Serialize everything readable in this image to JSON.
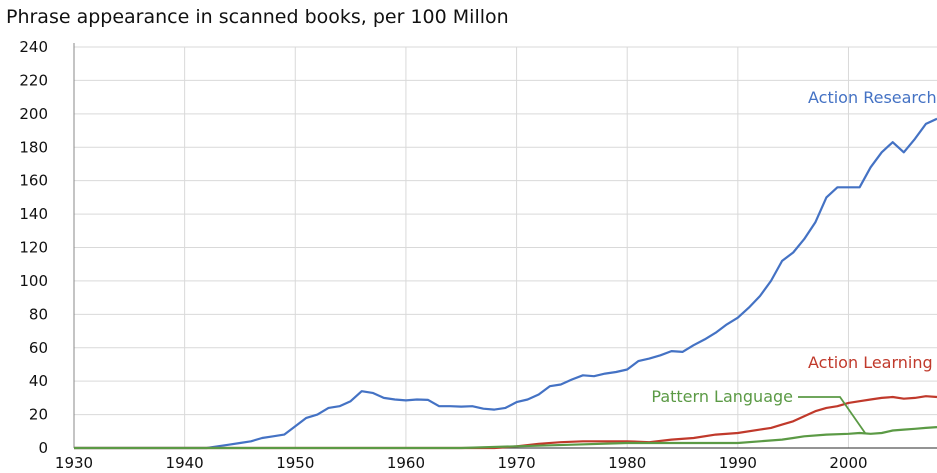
{
  "chart_data": {
    "type": "line",
    "title": "Phrase appearance in scanned books, per 100 Millon",
    "xlabel": "",
    "ylabel": "",
    "xlim": [
      1930,
      2008
    ],
    "ylim": [
      0,
      240
    ],
    "xticks": [
      1930,
      1940,
      1950,
      1960,
      1970,
      1980,
      1990,
      2000
    ],
    "yticks": [
      0,
      20,
      40,
      60,
      80,
      100,
      120,
      140,
      160,
      180,
      200,
      220,
      240
    ],
    "grid": true,
    "series": [
      {
        "name": "Action Research",
        "color": "#4472c4",
        "x": [
          1930,
          1942,
          1943,
          1944,
          1945,
          1946,
          1947,
          1948,
          1949,
          1950,
          1951,
          1952,
          1953,
          1954,
          1955,
          1956,
          1957,
          1958,
          1959,
          1960,
          1961,
          1962,
          1963,
          1964,
          1965,
          1966,
          1967,
          1968,
          1969,
          1970,
          1971,
          1972,
          1973,
          1974,
          1975,
          1976,
          1977,
          1978,
          1979,
          1980,
          1981,
          1982,
          1983,
          1984,
          1985,
          1986,
          1987,
          1988,
          1989,
          1990,
          1991,
          1992,
          1993,
          1994,
          1995,
          1996,
          1997,
          1998,
          1999,
          2000,
          2001,
          2002,
          2003,
          2004,
          2005,
          2006,
          2007,
          2008
        ],
        "y": [
          0,
          0,
          1,
          2,
          3,
          4,
          6,
          7,
          8,
          13,
          18,
          20,
          24,
          25,
          28,
          34,
          33,
          30,
          29,
          28.5,
          29,
          28.8,
          25,
          25,
          24.8,
          25,
          23.5,
          23,
          24,
          27.5,
          29,
          32,
          37,
          38,
          41,
          43.5,
          43,
          44.5,
          45.5,
          47,
          52,
          53.5,
          55.5,
          58,
          57.5,
          61.5,
          65,
          69,
          74,
          78,
          84,
          91,
          100,
          112,
          117,
          125,
          135,
          150,
          156,
          156,
          156,
          168,
          177,
          183,
          177,
          185,
          194,
          197
        ]
      },
      {
        "name": "Action Learning",
        "color": "#c0392b",
        "x": [
          1930,
          1968,
          1970,
          1972,
          1974,
          1976,
          1978,
          1980,
          1982,
          1984,
          1986,
          1988,
          1990,
          1992,
          1993,
          1994,
          1995,
          1996,
          1997,
          1998,
          1999,
          2000,
          2001,
          2002,
          2003,
          2004,
          2005,
          2006,
          2007,
          2008
        ],
        "y": [
          0,
          0,
          1,
          2.5,
          3.5,
          4,
          4,
          4,
          3.5,
          5,
          6,
          8,
          9,
          11,
          12,
          14,
          16,
          19,
          22,
          24,
          25,
          27,
          28,
          29,
          30,
          30.5,
          29.5,
          30,
          31,
          30.5
        ]
      },
      {
        "name": "Pattern Language",
        "color": "#5b9a45",
        "x": [
          1930,
          1965,
          1970,
          1975,
          1980,
          1985,
          1990,
          1992,
          1994,
          1995,
          1996,
          1998,
          2000,
          2001,
          2002,
          2003,
          2004,
          2005,
          2006,
          2007,
          2008
        ],
        "y": [
          0,
          0,
          1,
          2,
          3,
          3,
          3,
          4,
          5,
          6,
          7,
          8,
          8.5,
          9,
          8.5,
          9,
          10.5,
          11,
          11.5,
          12,
          12.5
        ]
      }
    ]
  }
}
